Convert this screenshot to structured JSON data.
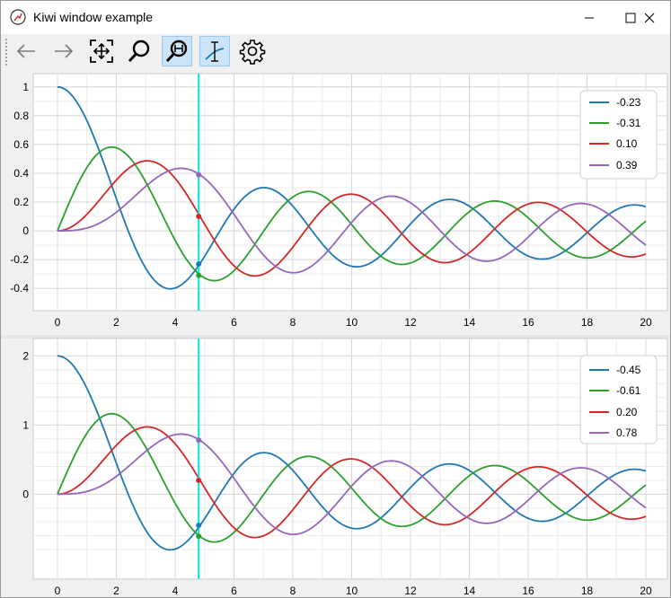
{
  "window": {
    "title": "Kiwi window example"
  },
  "icons": {
    "app": "kiwi-app-icon",
    "minimize": "minimize-icon",
    "maximize": "maximize-icon",
    "close": "close-icon"
  },
  "toolbar": {
    "buttons": [
      {
        "name": "back",
        "icon": "arrow-left-icon",
        "active": false
      },
      {
        "name": "forward",
        "icon": "arrow-right-icon",
        "active": false
      },
      {
        "name": "pan",
        "icon": "pan-move-icon",
        "active": false
      },
      {
        "name": "zoom",
        "icon": "magnifier-icon",
        "active": false
      },
      {
        "name": "zoom-horizontal",
        "icon": "magnifier-horizontal-icon",
        "active": true
      },
      {
        "name": "cursor",
        "icon": "cursor-curve-icon",
        "active": true
      },
      {
        "name": "settings",
        "icon": "gear-icon",
        "active": false
      }
    ]
  },
  "colors": {
    "blue": "#1f77b4",
    "green": "#2ca02c",
    "red": "#d62728",
    "purple": "#9467bd",
    "cursor": "#00e5ee",
    "grid": "#dcdcdc"
  },
  "chart_data": [
    {
      "type": "line",
      "xlim": [
        0,
        20
      ],
      "ylim": [
        -0.43,
        1.03
      ],
      "x_ticks": [
        "0",
        "2",
        "4",
        "6",
        "8",
        "10",
        "12",
        "14",
        "16",
        "18",
        "20"
      ],
      "y_ticks": [
        "1",
        "0.8",
        "0.6",
        "0.4",
        "0.2",
        "0",
        "-0.2",
        "-0.4"
      ],
      "y_tick_values": [
        1,
        0.8,
        0.6,
        0.4,
        0.2,
        0,
        -0.2,
        -0.4
      ],
      "scale": 1,
      "cursor_x": 4.8,
      "legend_position": "top-right",
      "series": [
        {
          "name": "-0.23",
          "function": "bessel_j0",
          "color": "#1f77b4",
          "value_at_cursor": -0.23
        },
        {
          "name": "-0.31",
          "function": "bessel_j1",
          "color": "#2ca02c",
          "value_at_cursor": -0.31
        },
        {
          "name": "0.10",
          "function": "bessel_j2",
          "color": "#d62728",
          "value_at_cursor": 0.1
        },
        {
          "name": "0.39",
          "function": "bessel_j3",
          "color": "#9467bd",
          "value_at_cursor": 0.39
        }
      ]
    },
    {
      "type": "line",
      "xlim": [
        0,
        20
      ],
      "ylim": [
        -0.97,
        2.07
      ],
      "x_ticks": [
        "0",
        "2",
        "4",
        "6",
        "8",
        "10",
        "12",
        "14",
        "16",
        "18",
        "20"
      ],
      "y_ticks": [
        "2",
        "1",
        "0"
      ],
      "y_tick_values": [
        2,
        1,
        0
      ],
      "scale": 2,
      "cursor_x": 4.8,
      "legend_position": "top-right",
      "series": [
        {
          "name": "-0.45",
          "function": "bessel_j0",
          "color": "#1f77b4",
          "value_at_cursor": -0.45
        },
        {
          "name": "-0.61",
          "function": "bessel_j1",
          "color": "#2ca02c",
          "value_at_cursor": -0.61
        },
        {
          "name": "0.20",
          "function": "bessel_j2",
          "color": "#d62728",
          "value_at_cursor": 0.2
        },
        {
          "name": "0.78",
          "function": "bessel_j3",
          "color": "#9467bd",
          "value_at_cursor": 0.78
        }
      ]
    }
  ]
}
